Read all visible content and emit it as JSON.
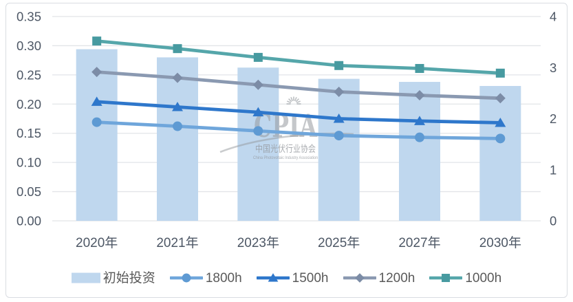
{
  "watermark": {
    "brand": "CPIA",
    "cn": "中国光伏行业协会",
    "en": "China Photovoltaic Industry Association"
  },
  "style": {
    "grid_color": "#E2E4E8",
    "axis_text_color": "#4D5765",
    "legend_text_color": "#595959",
    "border_color": "#D9DCE1",
    "watermark_color": "#95999E"
  },
  "chart_data": {
    "type": "combo bar+line, dual axis",
    "categories": [
      "2020年",
      "2021年",
      "2023年",
      "2025年",
      "2027年",
      "2030年"
    ],
    "bar_series": {
      "name": "初始投资",
      "axis": "right",
      "color": "#BFD7EE",
      "values": [
        3.36,
        3.2,
        3.0,
        2.78,
        2.72,
        2.64
      ]
    },
    "line_series": [
      {
        "name": "1800h",
        "axis": "left",
        "marker": "circle",
        "color": "#6FA6DB",
        "marker_color": "#5E9AD3",
        "values": [
          0.169,
          0.162,
          0.154,
          0.146,
          0.143,
          0.141
        ]
      },
      {
        "name": "1500h",
        "axis": "left",
        "marker": "triangle",
        "color": "#2E77CB",
        "marker_color": "#2E77CB",
        "values": [
          0.204,
          0.195,
          0.186,
          0.175,
          0.171,
          0.168
        ]
      },
      {
        "name": "1200h",
        "axis": "left",
        "marker": "diamond",
        "color": "#8A99B1",
        "marker_color": "#7C8CA6",
        "values": [
          0.255,
          0.245,
          0.233,
          0.221,
          0.215,
          0.21
        ]
      },
      {
        "name": "1000h",
        "axis": "left",
        "marker": "square",
        "color": "#55A6AA",
        "marker_color": "#479AA0",
        "values": [
          0.308,
          0.295,
          0.28,
          0.266,
          0.261,
          0.253
        ]
      }
    ],
    "left_axis": {
      "min": 0,
      "max": 0.35,
      "step": 0.05,
      "ticks": [
        "0.00",
        "0.05",
        "0.10",
        "0.15",
        "0.20",
        "0.25",
        "0.30",
        "0.35"
      ]
    },
    "right_axis": {
      "min": 0,
      "max": 4,
      "step": 1,
      "ticks": [
        "0",
        "1",
        "2",
        "3",
        "4"
      ]
    },
    "grid": true,
    "legend_position": "bottom",
    "title": ""
  }
}
